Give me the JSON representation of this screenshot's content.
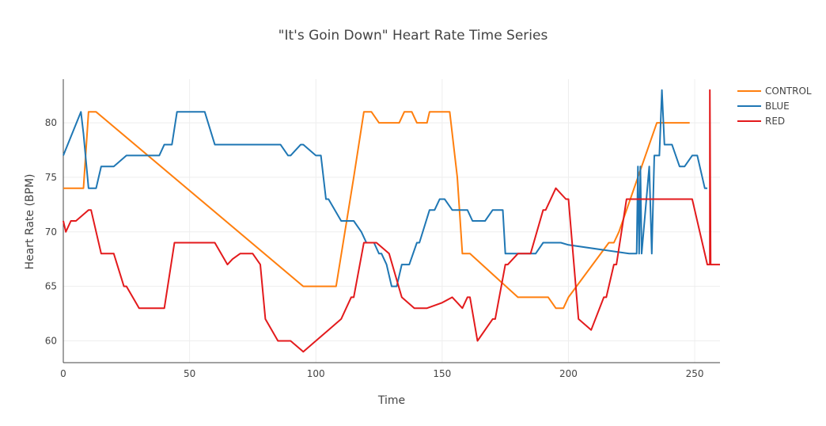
{
  "chart_data": {
    "type": "line",
    "title": "\"It's Goin Down\" Heart Rate Time Series",
    "xlabel": "Time",
    "ylabel": "Heart Rate (BPM)",
    "xlim": [
      0,
      260
    ],
    "ylim": [
      58,
      84
    ],
    "x_ticks": [
      0,
      50,
      100,
      150,
      200,
      250
    ],
    "y_ticks": [
      60,
      65,
      70,
      75,
      80
    ],
    "grid": true,
    "legend_position": "top-right",
    "series": [
      {
        "name": "CONTROL",
        "color": "#ff7f0e",
        "points": [
          [
            0,
            74
          ],
          [
            8,
            74
          ],
          [
            10,
            81
          ],
          [
            13,
            81
          ],
          [
            95,
            65
          ],
          [
            108,
            65
          ],
          [
            115,
            75
          ],
          [
            119,
            81
          ],
          [
            122,
            81
          ],
          [
            125,
            80
          ],
          [
            133,
            80
          ],
          [
            135,
            81
          ],
          [
            138,
            81
          ],
          [
            140,
            80
          ],
          [
            144,
            80
          ],
          [
            145,
            81
          ],
          [
            153,
            81
          ],
          [
            156,
            75
          ],
          [
            158,
            68
          ],
          [
            161,
            68
          ],
          [
            180,
            64
          ],
          [
            192,
            64
          ],
          [
            195,
            63
          ],
          [
            198,
            63
          ],
          [
            200,
            64
          ],
          [
            216,
            69
          ],
          [
            218,
            69
          ],
          [
            220,
            70
          ],
          [
            235,
            80
          ],
          [
            248,
            80
          ]
        ]
      },
      {
        "name": "BLUE",
        "color": "#1f77b4",
        "points": [
          [
            0,
            77
          ],
          [
            7,
            81
          ],
          [
            8,
            79
          ],
          [
            10,
            74
          ],
          [
            13,
            74
          ],
          [
            14,
            75
          ],
          [
            15,
            76
          ],
          [
            20,
            76
          ],
          [
            25,
            77
          ],
          [
            38,
            77
          ],
          [
            40,
            78
          ],
          [
            43,
            78
          ],
          [
            45,
            81
          ],
          [
            56,
            81
          ],
          [
            60,
            78
          ],
          [
            86,
            78
          ],
          [
            89,
            77
          ],
          [
            90,
            77
          ],
          [
            94,
            78
          ],
          [
            95,
            78
          ],
          [
            100,
            77
          ],
          [
            102,
            77
          ],
          [
            104,
            73
          ],
          [
            105,
            73
          ],
          [
            110,
            71
          ],
          [
            115,
            71
          ],
          [
            118,
            70
          ],
          [
            120,
            69
          ],
          [
            123,
            69
          ],
          [
            125,
            68
          ],
          [
            126,
            68
          ],
          [
            128,
            67
          ],
          [
            130,
            65
          ],
          [
            132,
            65
          ],
          [
            134,
            67
          ],
          [
            137,
            67
          ],
          [
            140,
            69
          ],
          [
            141,
            69
          ],
          [
            145,
            72
          ],
          [
            147,
            72
          ],
          [
            149,
            73
          ],
          [
            151,
            73
          ],
          [
            154,
            72
          ],
          [
            160,
            72
          ],
          [
            162,
            71
          ],
          [
            167,
            71
          ],
          [
            170,
            72
          ],
          [
            174,
            72
          ],
          [
            175,
            68
          ],
          [
            187,
            68
          ],
          [
            190,
            69
          ],
          [
            197,
            69
          ],
          [
            200,
            68.8
          ],
          [
            224,
            68
          ],
          [
            227,
            68
          ],
          [
            227.5,
            76
          ],
          [
            228,
            68
          ],
          [
            228.5,
            76
          ],
          [
            229,
            68
          ],
          [
            232,
            76
          ],
          [
            233,
            68
          ],
          [
            234,
            77
          ],
          [
            236,
            77
          ],
          [
            237,
            83
          ],
          [
            238,
            78
          ],
          [
            241,
            78
          ],
          [
            244,
            76
          ],
          [
            246,
            76
          ],
          [
            249,
            77
          ],
          [
            251,
            77
          ],
          [
            254,
            74
          ],
          [
            255,
            74
          ]
        ]
      },
      {
        "name": "RED",
        "color": "#e31a1c",
        "points": [
          [
            0,
            71
          ],
          [
            1,
            70
          ],
          [
            3,
            71
          ],
          [
            5,
            71
          ],
          [
            10,
            72
          ],
          [
            11,
            72
          ],
          [
            13,
            70
          ],
          [
            15,
            68
          ],
          [
            20,
            68
          ],
          [
            24,
            65
          ],
          [
            25,
            65
          ],
          [
            30,
            63
          ],
          [
            40,
            63
          ],
          [
            44,
            69
          ],
          [
            60,
            69
          ],
          [
            65,
            67
          ],
          [
            67,
            67.5
          ],
          [
            70,
            68
          ],
          [
            75,
            68
          ],
          [
            78,
            67
          ],
          [
            80,
            62
          ],
          [
            85,
            60
          ],
          [
            90,
            60
          ],
          [
            95,
            59
          ],
          [
            100,
            60
          ],
          [
            105,
            61
          ],
          [
            110,
            62
          ],
          [
            114,
            64
          ],
          [
            115,
            64
          ],
          [
            119,
            69
          ],
          [
            124,
            69
          ],
          [
            129,
            68
          ],
          [
            134,
            64
          ],
          [
            139,
            63
          ],
          [
            144,
            63
          ],
          [
            150,
            63.5
          ],
          [
            154,
            64
          ],
          [
            158,
            63
          ],
          [
            160,
            64
          ],
          [
            161,
            64
          ],
          [
            164,
            60
          ],
          [
            170,
            62
          ],
          [
            171,
            62
          ],
          [
            175,
            67
          ],
          [
            176,
            67
          ],
          [
            180,
            68
          ],
          [
            185,
            68
          ],
          [
            190,
            72
          ],
          [
            191,
            72
          ],
          [
            195,
            74
          ],
          [
            199,
            73
          ],
          [
            200,
            73
          ],
          [
            204,
            62
          ],
          [
            209,
            61
          ],
          [
            214,
            64
          ],
          [
            215,
            64
          ],
          [
            218,
            67
          ],
          [
            219,
            67
          ],
          [
            223,
            73
          ],
          [
            249,
            73
          ],
          [
            255,
            67
          ],
          [
            256,
            67
          ],
          [
            256,
            83
          ],
          [
            256.3,
            67
          ],
          [
            260,
            67
          ]
        ]
      }
    ]
  }
}
